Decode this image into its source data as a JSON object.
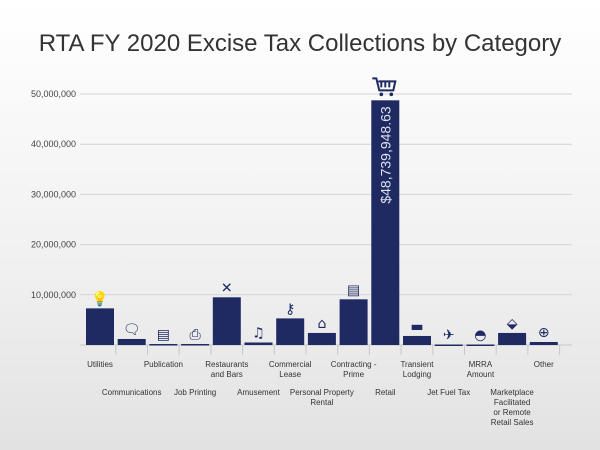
{
  "chart_data": {
    "type": "bar",
    "title": "RTA FY 2020 Excise Tax Collections by Category",
    "xlabel": "",
    "ylabel": "",
    "ylim": [
      0,
      50000000
    ],
    "yticks": [
      "10,000,000",
      "20,000,000",
      "30,000,000",
      "40,000,000",
      "50,000,000"
    ],
    "ytick_values": [
      10000000,
      20000000,
      30000000,
      40000000,
      50000000
    ],
    "grid": true,
    "bar_color": "#1f2a63",
    "categories": [
      "Utilities",
      "Communications",
      "Publication",
      "Job Printing",
      "Restaurants and Bars",
      "Amusement",
      "Commercial Lease",
      "Personal Property Rental",
      "Contracting - Prime",
      "Retail",
      "Transient Lodging",
      "Jet Fuel Tax",
      "MRRA Amount",
      "Marketplace Facilitated or Remote Retail Sales",
      "Other"
    ],
    "category_lines": [
      [
        "Utilities"
      ],
      [
        "Communications"
      ],
      [
        "Publication"
      ],
      [
        "Job Printing"
      ],
      [
        "Restaurants",
        "and Bars"
      ],
      [
        "Amusement"
      ],
      [
        "Commercial",
        "Lease"
      ],
      [
        "Personal Property",
        "Rental"
      ],
      [
        "Contracting -",
        "Prime"
      ],
      [
        "Retail"
      ],
      [
        "Transient",
        "Lodging"
      ],
      [
        "Jet Fuel Tax"
      ],
      [
        "MRRA",
        "Amount"
      ],
      [
        "Marketplace",
        "Facilitated",
        "or Remote",
        "Retail Sales"
      ],
      [
        "Other"
      ]
    ],
    "icons": [
      "lightbulb-icon",
      "chat-bubbles-icon",
      "newspaper-icon",
      "printer-icon",
      "fork-knife-icon",
      "music-notes-icon",
      "key-icon",
      "house-icon",
      "contract-handshake-icon",
      "shopping-cart-icon",
      "cash-register-icon",
      "airplane-drop-icon",
      "hard-hat-icon",
      "price-tag-icon",
      "plus-circle-icon"
    ],
    "values": [
      7300000,
      1200000,
      200000,
      200000,
      9500000,
      500000,
      5300000,
      2400000,
      9100000,
      48739948.63,
      1800000,
      100000,
      100000,
      2400000,
      600000
    ],
    "data_labels": {
      "Retail": "$48,739,948.63"
    }
  }
}
